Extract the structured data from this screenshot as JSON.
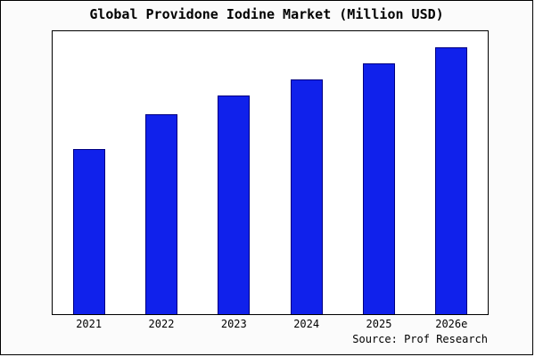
{
  "chart_data": {
    "type": "bar",
    "title": "Global Providone Iodine Market (Million USD)",
    "categories": [
      "2021",
      "2022",
      "2023",
      "2024",
      "2025",
      "2026e"
    ],
    "values": [
      62,
      75,
      82,
      88,
      94,
      100
    ],
    "xlabel": "",
    "ylabel": "",
    "ylim": [
      0,
      106
    ],
    "grid": false,
    "legend_position": "none",
    "bar_fill": "#1021EB",
    "bar_edge": "#000080",
    "plot_bg": "#ffffff",
    "figure_bg": "#fbfbfb",
    "frame_border": "#000000"
  },
  "source": "Source: Prof Research"
}
